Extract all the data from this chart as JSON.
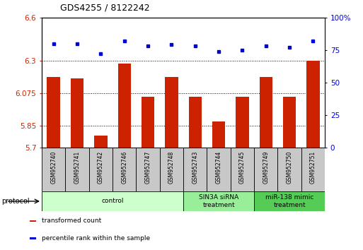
{
  "title": "GDS4255 / 8122242",
  "samples": [
    "GSM952740",
    "GSM952741",
    "GSM952742",
    "GSM952746",
    "GSM952747",
    "GSM952748",
    "GSM952743",
    "GSM952744",
    "GSM952745",
    "GSM952749",
    "GSM952750",
    "GSM952751"
  ],
  "transformed_count": [
    6.19,
    6.18,
    5.78,
    6.28,
    6.05,
    6.19,
    6.05,
    5.88,
    6.05,
    6.19,
    6.05,
    6.3
  ],
  "percentile_rank": [
    80,
    80,
    72,
    82,
    78,
    79,
    78,
    74,
    75,
    78,
    77,
    82
  ],
  "groups": [
    {
      "label": "control",
      "start": 0,
      "end": 6,
      "color": "#ccffcc"
    },
    {
      "label": "SIN3A siRNA\ntreatment",
      "start": 6,
      "end": 9,
      "color": "#99ee99"
    },
    {
      "label": "miR-138 mimic\ntreatment",
      "start": 9,
      "end": 12,
      "color": "#55cc55"
    }
  ],
  "ylim_left": [
    5.7,
    6.6
  ],
  "yticks_left": [
    5.7,
    5.85,
    6.075,
    6.3,
    6.6
  ],
  "ytick_labels_left": [
    "5.7",
    "5.85",
    "6.075",
    "6.3",
    "6.6"
  ],
  "ylim_right": [
    0,
    100
  ],
  "yticks_right": [
    0,
    25,
    50,
    75,
    100
  ],
  "ytick_labels_right": [
    "0",
    "25",
    "50",
    "75",
    "100%"
  ],
  "bar_color": "#cc2200",
  "dot_color": "#0000cc",
  "label_box_color": "#c8c8c8",
  "legend_items": [
    {
      "label": "transformed count",
      "color": "#cc2200"
    },
    {
      "label": "percentile rank within the sample",
      "color": "#0000cc"
    }
  ]
}
